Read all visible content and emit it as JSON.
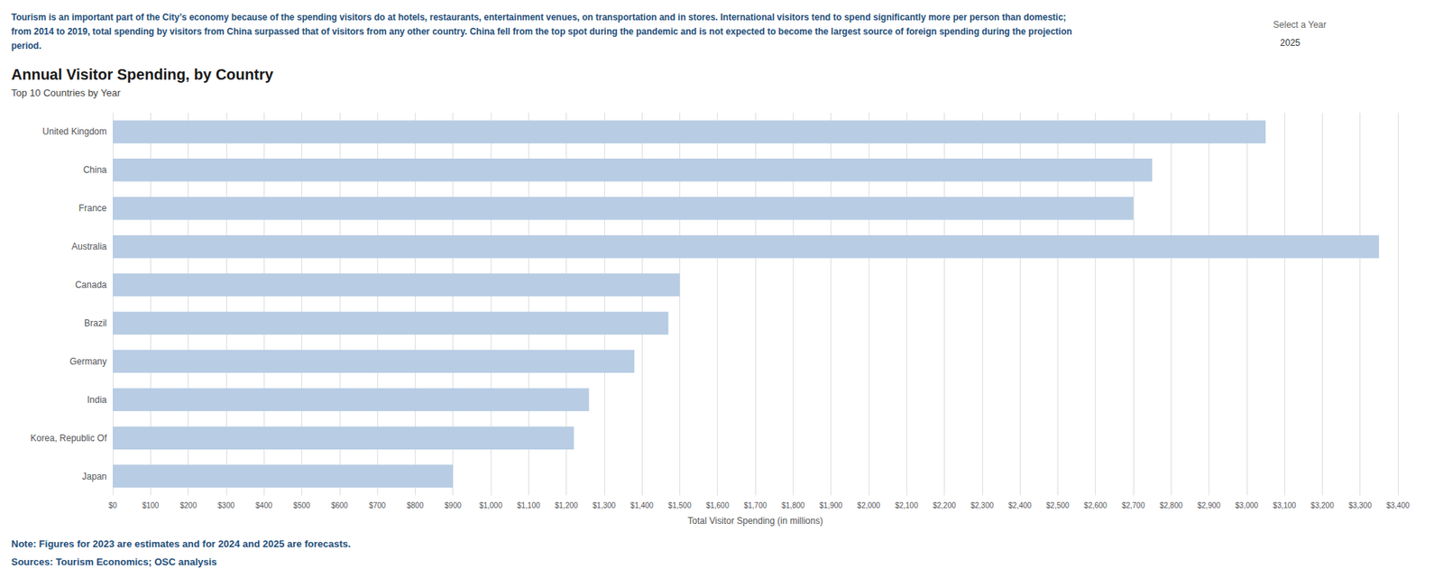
{
  "chart_data": {
    "type": "bar",
    "orientation": "horizontal",
    "title": "Annual Visitor Spending, by Country",
    "subtitle": "Top 10 Countries by Year",
    "annotations": [
      "Tourism is an important part of the City’s economy because of the spending visitors do at hotels, restaurants, entertainment venues, on transportation and in stores. International visitors tend to spend significantly more per person than domestic; from 2014 to 2019, total spending by visitors from China surpassed that of visitors from any other country. China fell from the top spot during the pandemic and is not expected to become the largest source of foreign spending during the projection period.",
      "Select a Year",
      "2025",
      "Note: Figures for 2023 are estimates and for 2024 and 2025 are forecasts.",
      "Sources: Tourism Economics; OSC analysis"
    ],
    "x_label": "Total Visitor Spending (in millions)",
    "categories": [
      "United Kingdom",
      "China",
      "France",
      "Australia",
      "Canada",
      "Brazil",
      "Germany",
      "India",
      "Korea, Republic Of",
      "Japan"
    ],
    "values": [
      3050,
      2750,
      2700,
      3350,
      1500,
      1470,
      1380,
      1260,
      1220,
      900
    ],
    "color": "#b8cce4",
    "xlim": [
      0,
      3400
    ],
    "xticks": [
      {
        "value": 0,
        "label": "$0"
      },
      {
        "value": 100,
        "label": "$100"
      },
      {
        "value": 200,
        "label": "$200"
      },
      {
        "value": 300,
        "label": "$300"
      },
      {
        "value": 400,
        "label": "$400"
      },
      {
        "value": 500,
        "label": "$500"
      },
      {
        "value": 600,
        "label": "$600"
      },
      {
        "value": 700,
        "label": "$700"
      },
      {
        "value": 800,
        "label": "$800"
      },
      {
        "value": 900,
        "label": "$900"
      },
      {
        "value": 1000,
        "label": "$1,000"
      },
      {
        "value": 1100,
        "label": "$1,100"
      },
      {
        "value": 1200,
        "label": "$1,200"
      },
      {
        "value": 1300,
        "label": "$1,300"
      },
      {
        "value": 1400,
        "label": "$1,400"
      },
      {
        "value": 1500,
        "label": "$1,500"
      },
      {
        "value": 1600,
        "label": "$1,600"
      },
      {
        "value": 1700,
        "label": "$1,700"
      },
      {
        "value": 1800,
        "label": "$1,800"
      },
      {
        "value": 1900,
        "label": "$1,900"
      },
      {
        "value": 2000,
        "label": "$2,000"
      },
      {
        "value": 2100,
        "label": "$2,100"
      },
      {
        "value": 2200,
        "label": "$2,200"
      },
      {
        "value": 2300,
        "label": "$2,300"
      },
      {
        "value": 2400,
        "label": "$2,400"
      },
      {
        "value": 2500,
        "label": "$2,500"
      },
      {
        "value": 2600,
        "label": "$2,600"
      },
      {
        "value": 2700,
        "label": "$2,700"
      },
      {
        "value": 2800,
        "label": "$2,800"
      },
      {
        "value": 2900,
        "label": "$2,900"
      },
      {
        "value": 3000,
        "label": "$3,000"
      },
      {
        "value": 3100,
        "label": "$3,100"
      },
      {
        "value": 3200,
        "label": "$3,200"
      },
      {
        "value": 3300,
        "label": "$3,300"
      },
      {
        "value": 3400,
        "label": "$3,400"
      }
    ],
    "grid": true
  }
}
